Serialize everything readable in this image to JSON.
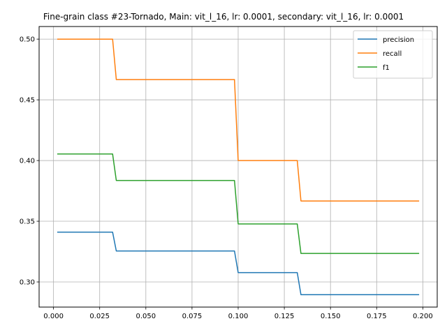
{
  "chart_data": {
    "type": "line",
    "title": "Fine-grain class #23-Tornado, Main: vit_l_16, lr: 0.0001, secondary: vit_l_16, lr: 0.0001",
    "xlabel": "",
    "ylabel": "",
    "xlim": [
      -0.0078,
      0.2078
    ],
    "ylim": [
      0.2793,
      0.5104
    ],
    "grid": true,
    "legend_position": "top-right",
    "x_ticks": [
      0.0,
      0.025,
      0.05,
      0.075,
      0.1,
      0.125,
      0.15,
      0.175,
      0.2
    ],
    "x_tick_labels": [
      "0.000",
      "0.025",
      "0.050",
      "0.075",
      "0.100",
      "0.125",
      "0.150",
      "0.175",
      "0.200"
    ],
    "y_ticks": [
      0.3,
      0.35,
      0.4,
      0.45,
      0.5
    ],
    "y_tick_labels": [
      "0.30",
      "0.35",
      "0.40",
      "0.45",
      "0.50"
    ],
    "series": [
      {
        "name": "precision",
        "color": "#1f77b4",
        "x": [
          0.002,
          0.032,
          0.034,
          0.098,
          0.1,
          0.132,
          0.134,
          0.198
        ],
        "y": [
          0.341,
          0.341,
          0.3255,
          0.3255,
          0.3077,
          0.3077,
          0.2895,
          0.2895
        ]
      },
      {
        "name": "recall",
        "color": "#ff7f0e",
        "x": [
          0.002,
          0.032,
          0.034,
          0.098,
          0.1,
          0.132,
          0.134,
          0.198
        ],
        "y": [
          0.5,
          0.5,
          0.4667,
          0.4667,
          0.4,
          0.4,
          0.3667,
          0.3667
        ]
      },
      {
        "name": "f1",
        "color": "#2ca02c",
        "x": [
          0.002,
          0.032,
          0.034,
          0.098,
          0.1,
          0.132,
          0.134,
          0.198
        ],
        "y": [
          0.4054,
          0.4054,
          0.3836,
          0.3836,
          0.3478,
          0.3478,
          0.3235,
          0.3235
        ]
      }
    ]
  }
}
